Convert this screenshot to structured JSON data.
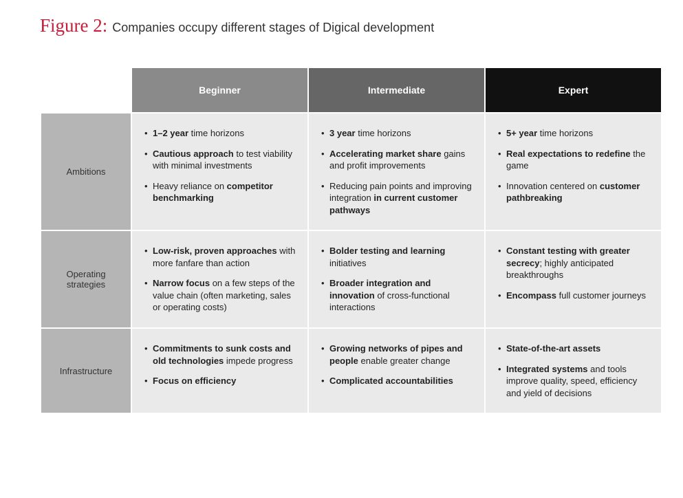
{
  "figure": {
    "label": "Figure 2:",
    "caption": "Companies occupy different stages of Digical development"
  },
  "columns": [
    {
      "label": "Beginner",
      "bg": "#8a8a8a"
    },
    {
      "label": "Intermediate",
      "bg": "#666666"
    },
    {
      "label": "Expert",
      "bg": "#111111"
    }
  ],
  "rows": [
    {
      "label": "Ambitions",
      "cells": [
        [
          "<b>1–2 year</b> time horizons",
          "<b>Cautious approach</b> to test viability with minimal investments",
          "Heavy reliance on <b>competitor benchmarking</b>"
        ],
        [
          "<b>3 year</b> time horizons",
          "<b>Accelerating market share</b> gains and profit improvements",
          "Reducing pain points and improving integration <b>in current customer pathways</b>"
        ],
        [
          "<b>5+ year</b> time horizons",
          "<b>Real expectations to redefine</b> the game",
          "Innovation centered on <b>customer pathbreaking</b>"
        ]
      ]
    },
    {
      "label": "Operating strategies",
      "cells": [
        [
          "<b>Low-risk, proven approaches</b> with more fanfare than action",
          "<b>Narrow focus</b> on a few steps of the value chain (often marketing, sales or operating costs)"
        ],
        [
          "<b>Bolder testing and learning</b> initiatives",
          "<b>Broader integration and innovation</b> of cross-functional interactions"
        ],
        [
          "<b>Constant testing with greater secrecy</b>; highly anticipated breakthroughs",
          "<b>Encompass</b> full customer journeys"
        ]
      ]
    },
    {
      "label": "Infrastructure",
      "cells": [
        [
          "<b>Commitments to sunk costs and old technologies</b> impede progress",
          "<b>Focus on efficiency</b>"
        ],
        [
          "<b>Growing networks of pipes and people</b> enable greater change",
          "<b>Complicated accountabilities</b>"
        ],
        [
          "<b>State-of-the-art assets</b>",
          "<b>Integrated systems</b> and tools improve quality, speed, efficiency and yield of decisions"
        ]
      ]
    }
  ]
}
